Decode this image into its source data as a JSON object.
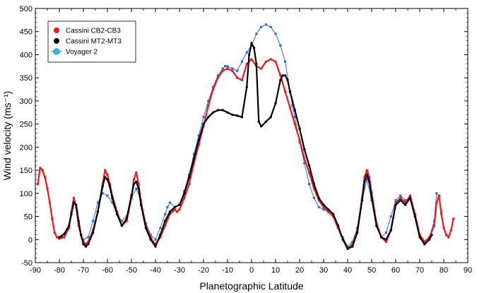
{
  "chart_data": {
    "type": "scatter",
    "title": "",
    "xlabel": "Planetographic Latitude",
    "ylabel": "Wind velocity (ms⁻¹)",
    "xlim": [
      -90,
      90
    ],
    "ylim": [
      -50,
      500
    ],
    "x_ticks": [
      -90,
      -80,
      -70,
      -60,
      -50,
      -40,
      -30,
      -20,
      -10,
      0,
      10,
      20,
      30,
      40,
      50,
      60,
      70,
      80,
      90
    ],
    "y_ticks": [
      -50,
      0,
      50,
      100,
      150,
      200,
      250,
      300,
      350,
      400,
      450,
      500
    ],
    "grid": false,
    "legend_position": "top-left",
    "series": [
      {
        "name": "Cassini CB2-CB3",
        "color": "#e8191f",
        "marker": "circle",
        "points": [
          [
            -89,
            120
          ],
          [
            -88,
            155
          ],
          [
            -87,
            150
          ],
          [
            -86,
            135
          ],
          [
            -85,
            110
          ],
          [
            -84,
            80
          ],
          [
            -83,
            45
          ],
          [
            -82,
            15
          ],
          [
            -81,
            5
          ],
          [
            -80,
            2
          ],
          [
            -78,
            5
          ],
          [
            -76,
            25
          ],
          [
            -75,
            60
          ],
          [
            -74,
            90
          ],
          [
            -73,
            70
          ],
          [
            -72,
            30
          ],
          [
            -71,
            10
          ],
          [
            -70,
            -5
          ],
          [
            -69,
            -10
          ],
          [
            -68,
            -5
          ],
          [
            -66,
            20
          ],
          [
            -64,
            60
          ],
          [
            -62,
            120
          ],
          [
            -61,
            150
          ],
          [
            -60,
            140
          ],
          [
            -59,
            120
          ],
          [
            -58,
            95
          ],
          [
            -56,
            60
          ],
          [
            -54,
            30
          ],
          [
            -52,
            40
          ],
          [
            -50,
            90
          ],
          [
            -49,
            130
          ],
          [
            -48,
            145
          ],
          [
            -47,
            120
          ],
          [
            -46,
            80
          ],
          [
            -44,
            30
          ],
          [
            -42,
            5
          ],
          [
            -41,
            -5
          ],
          [
            -40,
            -10
          ],
          [
            -38,
            5
          ],
          [
            -36,
            30
          ],
          [
            -34,
            55
          ],
          [
            -32,
            65
          ],
          [
            -31,
            60
          ],
          [
            -30,
            65
          ],
          [
            -28,
            90
          ],
          [
            -26,
            120
          ],
          [
            -24,
            165
          ],
          [
            -22,
            205
          ],
          [
            -20,
            245
          ],
          [
            -18,
            290
          ],
          [
            -16,
            325
          ],
          [
            -14,
            350
          ],
          [
            -12,
            365
          ],
          [
            -10,
            370
          ],
          [
            -8,
            365
          ],
          [
            -6,
            350
          ],
          [
            -4,
            345
          ],
          [
            -2,
            380
          ],
          [
            0,
            390
          ],
          [
            2,
            375
          ],
          [
            4,
            370
          ],
          [
            6,
            385
          ],
          [
            8,
            390
          ],
          [
            10,
            385
          ],
          [
            12,
            355
          ],
          [
            14,
            320
          ],
          [
            16,
            285
          ],
          [
            18,
            250
          ],
          [
            20,
            215
          ],
          [
            22,
            175
          ],
          [
            24,
            145
          ],
          [
            26,
            110
          ],
          [
            28,
            85
          ],
          [
            30,
            70
          ],
          [
            32,
            60
          ],
          [
            34,
            50
          ],
          [
            36,
            25
          ],
          [
            38,
            0
          ],
          [
            40,
            -20
          ],
          [
            42,
            -10
          ],
          [
            44,
            20
          ],
          [
            46,
            90
          ],
          [
            47,
            135
          ],
          [
            48,
            150
          ],
          [
            49,
            135
          ],
          [
            50,
            100
          ],
          [
            52,
            35
          ],
          [
            54,
            5
          ],
          [
            56,
            -5
          ],
          [
            58,
            20
          ],
          [
            60,
            80
          ],
          [
            62,
            90
          ],
          [
            64,
            80
          ],
          [
            66,
            95
          ],
          [
            68,
            55
          ],
          [
            70,
            10
          ],
          [
            72,
            -5
          ],
          [
            74,
            5
          ],
          [
            76,
            30
          ],
          [
            77,
            80
          ],
          [
            78,
            95
          ],
          [
            79,
            55
          ],
          [
            80,
            25
          ],
          [
            81,
            10
          ],
          [
            82,
            5
          ],
          [
            83,
            20
          ],
          [
            84,
            45
          ]
        ]
      },
      {
        "name": "Cassini MT2-MT3",
        "color": "#000000",
        "marker": "circle",
        "points": [
          [
            -80,
            5
          ],
          [
            -79,
            8
          ],
          [
            -78,
            12
          ],
          [
            -76,
            30
          ],
          [
            -75,
            55
          ],
          [
            -74,
            80
          ],
          [
            -73,
            75
          ],
          [
            -72,
            40
          ],
          [
            -71,
            10
          ],
          [
            -70,
            -10
          ],
          [
            -69,
            -15
          ],
          [
            -68,
            -10
          ],
          [
            -66,
            15
          ],
          [
            -64,
            60
          ],
          [
            -62,
            115
          ],
          [
            -61,
            135
          ],
          [
            -60,
            130
          ],
          [
            -59,
            115
          ],
          [
            -58,
            90
          ],
          [
            -56,
            55
          ],
          [
            -54,
            30
          ],
          [
            -52,
            45
          ],
          [
            -50,
            95
          ],
          [
            -49,
            120
          ],
          [
            -48,
            125
          ],
          [
            -47,
            110
          ],
          [
            -46,
            75
          ],
          [
            -44,
            25
          ],
          [
            -42,
            0
          ],
          [
            -40,
            -15
          ],
          [
            -38,
            10
          ],
          [
            -36,
            40
          ],
          [
            -34,
            60
          ],
          [
            -32,
            70
          ],
          [
            -30,
            75
          ],
          [
            -28,
            100
          ],
          [
            -26,
            135
          ],
          [
            -24,
            175
          ],
          [
            -22,
            215
          ],
          [
            -20,
            250
          ],
          [
            -18,
            265
          ],
          [
            -16,
            275
          ],
          [
            -14,
            280
          ],
          [
            -12,
            280
          ],
          [
            -10,
            275
          ],
          [
            -8,
            270
          ],
          [
            -6,
            268
          ],
          [
            -4,
            265
          ],
          [
            -2,
            330
          ],
          [
            -1,
            400
          ],
          [
            0,
            425
          ],
          [
            1,
            415
          ],
          [
            2,
            380
          ],
          [
            3,
            255
          ],
          [
            4,
            245
          ],
          [
            6,
            255
          ],
          [
            8,
            265
          ],
          [
            10,
            295
          ],
          [
            12,
            345
          ],
          [
            13,
            355
          ],
          [
            14,
            355
          ],
          [
            15,
            345
          ],
          [
            16,
            320
          ],
          [
            18,
            280
          ],
          [
            20,
            240
          ],
          [
            22,
            195
          ],
          [
            24,
            160
          ],
          [
            26,
            120
          ],
          [
            28,
            90
          ],
          [
            30,
            75
          ],
          [
            32,
            65
          ],
          [
            34,
            55
          ],
          [
            36,
            30
          ],
          [
            38,
            0
          ],
          [
            40,
            -20
          ],
          [
            42,
            -15
          ],
          [
            44,
            15
          ],
          [
            46,
            85
          ],
          [
            47,
            125
          ],
          [
            48,
            140
          ],
          [
            49,
            125
          ],
          [
            50,
            90
          ],
          [
            52,
            30
          ],
          [
            54,
            5
          ],
          [
            56,
            0
          ],
          [
            58,
            20
          ],
          [
            60,
            75
          ],
          [
            62,
            85
          ],
          [
            64,
            75
          ],
          [
            66,
            90
          ],
          [
            68,
            50
          ],
          [
            70,
            5
          ],
          [
            72,
            -10
          ],
          [
            74,
            0
          ],
          [
            75,
            10
          ]
        ]
      },
      {
        "name": "Voyager 2",
        "color": "#2b6fd6",
        "marker": "square",
        "points": [
          [
            -70,
            0
          ],
          [
            -68,
            5
          ],
          [
            -66,
            40
          ],
          [
            -64,
            80
          ],
          [
            -62,
            100
          ],
          [
            -60,
            95
          ],
          [
            -58,
            80
          ],
          [
            -56,
            55
          ],
          [
            -54,
            40
          ],
          [
            -52,
            50
          ],
          [
            -50,
            90
          ],
          [
            -48,
            110
          ],
          [
            -46,
            85
          ],
          [
            -44,
            35
          ],
          [
            -42,
            10
          ],
          [
            -40,
            0
          ],
          [
            -38,
            25
          ],
          [
            -36,
            55
          ],
          [
            -35,
            70
          ],
          [
            -34,
            80
          ],
          [
            -32,
            70
          ],
          [
            -30,
            75
          ],
          [
            -28,
            105
          ],
          [
            -26,
            140
          ],
          [
            -24,
            185
          ],
          [
            -22,
            225
          ],
          [
            -20,
            265
          ],
          [
            -18,
            300
          ],
          [
            -16,
            330
          ],
          [
            -14,
            355
          ],
          [
            -12,
            370
          ],
          [
            -11,
            375
          ],
          [
            -10,
            375
          ],
          [
            -8,
            370
          ],
          [
            -6,
            365
          ],
          [
            -4,
            385
          ],
          [
            -2,
            405
          ],
          [
            0,
            420
          ],
          [
            2,
            445
          ],
          [
            4,
            460
          ],
          [
            6,
            465
          ],
          [
            8,
            460
          ],
          [
            10,
            445
          ],
          [
            12,
            420
          ],
          [
            14,
            385
          ],
          [
            16,
            320
          ],
          [
            17,
            290
          ],
          [
            18,
            265
          ],
          [
            20,
            210
          ],
          [
            22,
            165
          ],
          [
            24,
            120
          ],
          [
            26,
            90
          ],
          [
            28,
            70
          ],
          [
            30,
            65
          ],
          [
            32,
            60
          ],
          [
            34,
            50
          ],
          [
            36,
            25
          ],
          [
            38,
            5
          ],
          [
            40,
            -15
          ],
          [
            42,
            -5
          ],
          [
            44,
            25
          ],
          [
            46,
            85
          ],
          [
            48,
            130
          ],
          [
            50,
            85
          ],
          [
            52,
            30
          ],
          [
            54,
            5
          ],
          [
            56,
            15
          ],
          [
            58,
            50
          ],
          [
            60,
            85
          ],
          [
            62,
            95
          ],
          [
            64,
            85
          ],
          [
            66,
            90
          ],
          [
            68,
            55
          ],
          [
            70,
            10
          ],
          [
            72,
            -5
          ],
          [
            74,
            5
          ],
          [
            76,
            40
          ],
          [
            77,
            100
          ],
          [
            78,
            95
          ],
          [
            79,
            60
          ]
        ]
      }
    ]
  }
}
